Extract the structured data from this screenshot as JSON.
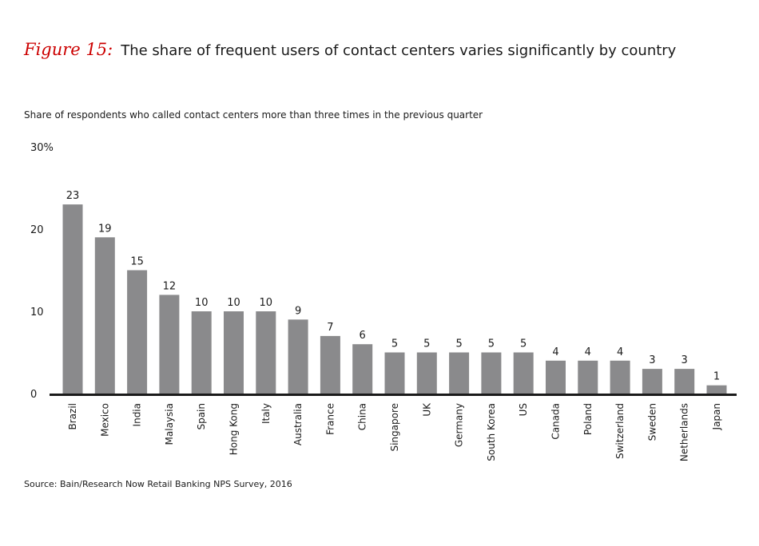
{
  "figure_label": "Figure 15:",
  "title": "The share of frequent users of contact centers varies significantly by country",
  "subtitle": "Share of respondents who called contact centers more than three times in the previous quarter",
  "source": "Source: Bain/Research Now Retail Banking NPS Survey, 2016",
  "colors": {
    "bar": "#8a8a8c",
    "axis": "#1a1a1a",
    "accent": "#cc0000"
  },
  "chart_data": {
    "type": "bar",
    "categories": [
      "Brazil",
      "Mexico",
      "India",
      "Malaysia",
      "Spain",
      "Hong Kong",
      "Italy",
      "Australia",
      "France",
      "China",
      "Singapore",
      "UK",
      "Germany",
      "South Korea",
      "US",
      "Canada",
      "Poland",
      "Switzerland",
      "Sweden",
      "Netherlands",
      "Japan"
    ],
    "values": [
      23,
      19,
      15,
      12,
      10,
      10,
      10,
      9,
      7,
      6,
      5,
      5,
      5,
      5,
      5,
      4,
      4,
      4,
      3,
      3,
      1
    ],
    "ylim": [
      0,
      30
    ],
    "yticks": [
      "0",
      "10",
      "20",
      "30%"
    ],
    "grid": false,
    "legend": "none"
  }
}
